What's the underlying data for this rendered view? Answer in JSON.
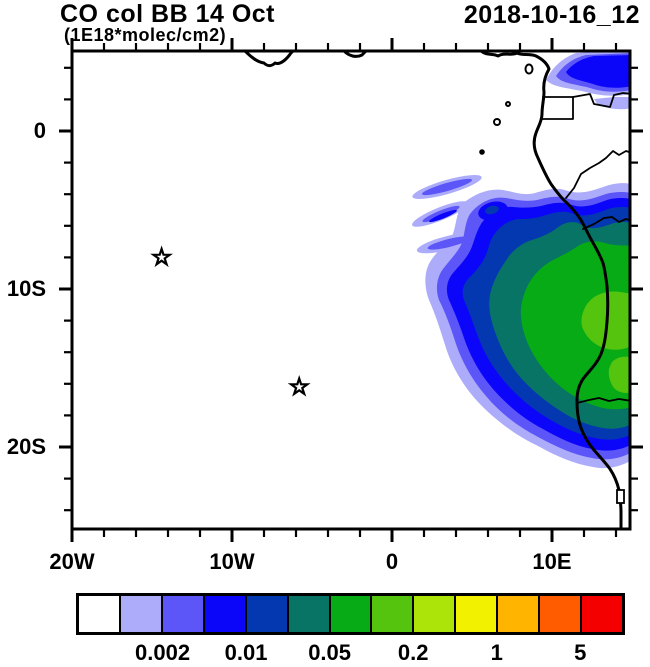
{
  "header": {
    "title": "CO col BB 14 Oct",
    "subtitle": "(1E18*molec/cm2)",
    "datestamp": "2018-10-16_12"
  },
  "axes": {
    "x": {
      "min": -20,
      "max": 14.9,
      "minor_step": 2,
      "majors": [
        {
          "value": -20,
          "label": "20W"
        },
        {
          "value": -10,
          "label": "10W"
        },
        {
          "value": 0,
          "label": "0"
        },
        {
          "value": 10,
          "label": "10E"
        }
      ]
    },
    "y": {
      "min": -25.2,
      "max": 5.06,
      "minor_step": 2,
      "majors": [
        {
          "value": 0,
          "label": "0"
        },
        {
          "value": -10,
          "label": "10S"
        },
        {
          "value": -20,
          "label": "20S"
        }
      ]
    }
  },
  "palette": {
    "white": "#FFFFFF",
    "lavender": "#ACACFA",
    "violet": "#5C55F7",
    "blue": "#0B06FA",
    "navy": "#0338B0",
    "teal": "#077465",
    "green": "#07AB15",
    "lightgreen": "#55C40F",
    "yellowgreen": "#ACE308",
    "yellow": "#F2F200",
    "orange": "#FFB400",
    "deeporange": "#FF5C00",
    "red": "#F50000",
    "line": "#000000"
  },
  "colorbar": {
    "cells": [
      "#FFFFFF",
      "#ACACFA",
      "#5C55F7",
      "#0B06FA",
      "#0338B0",
      "#077465",
      "#07AB15",
      "#55C40F",
      "#ACE308",
      "#F2F200",
      "#FFB400",
      "#FF5C00",
      "#F50000"
    ],
    "labels": [
      {
        "text": "0.002",
        "boundary": 2
      },
      {
        "text": "0.01",
        "boundary": 4
      },
      {
        "text": "0.05",
        "boundary": 6
      },
      {
        "text": "0.2",
        "boundary": 8
      },
      {
        "text": "1",
        "boundary": 10
      },
      {
        "text": "5",
        "boundary": 12
      }
    ]
  },
  "markers": [
    {
      "shape": "star",
      "lon": -14.4,
      "lat": -8.0
    },
    {
      "shape": "star",
      "lon": -5.8,
      "lat": -16.2
    }
  ],
  "chart_data": {
    "type": "heatmap",
    "subtype": "filled-contour-map",
    "title": "CO col BB 14 Oct",
    "units": "1E18*molec/cm2",
    "run_timestamp": "2018-10-16_12",
    "lon_range_deg": [
      -20,
      15
    ],
    "lat_range_deg": [
      -25,
      5
    ],
    "xtick_labels": [
      "20W",
      "10W",
      "0",
      "10E"
    ],
    "ytick_labels": [
      "0",
      "10S",
      "20S"
    ],
    "contour_levels": [
      0.001,
      0.002,
      0.005,
      0.01,
      0.02,
      0.05,
      0.1,
      0.2,
      0.5,
      1,
      2,
      5
    ],
    "colorbar_tick_labels": [
      "0.002",
      "0.01",
      "0.05",
      "0.2",
      "1",
      "5"
    ],
    "max_filled_level_range": "0.1-0.2",
    "plume_core_center_lonlat": [
      11,
      -12
    ],
    "star_markers_lonlat": [
      [
        -14.4,
        -8.0
      ],
      [
        -5.8,
        -16.2
      ]
    ],
    "grid": false,
    "legend_position": "bottom"
  }
}
